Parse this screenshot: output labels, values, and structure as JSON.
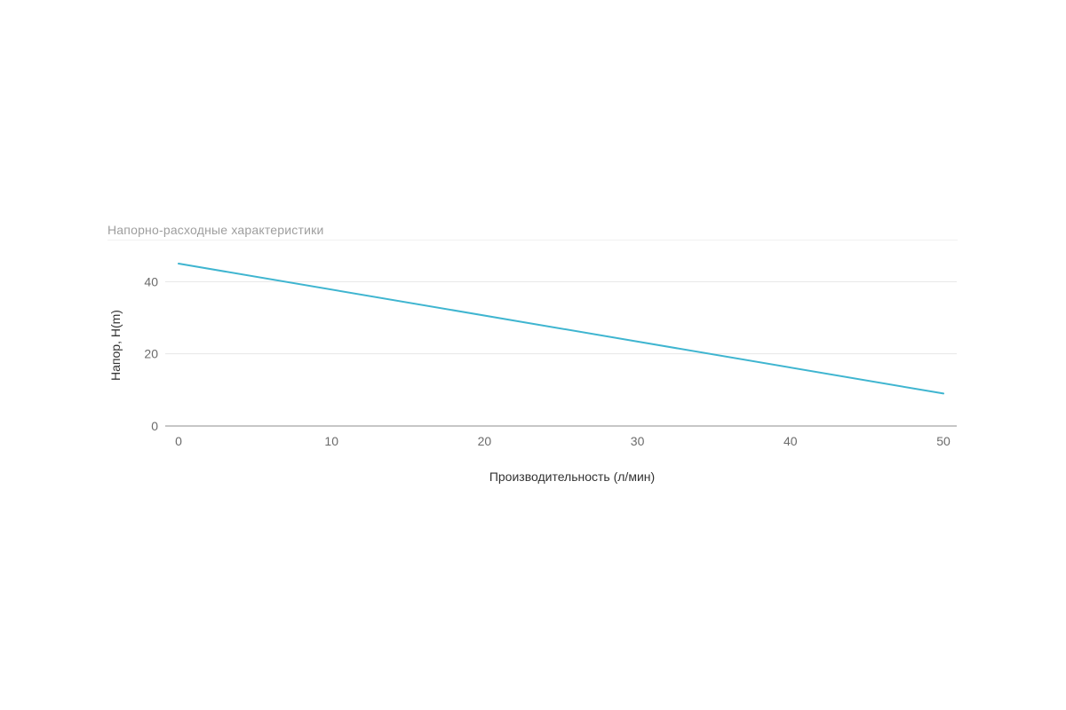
{
  "chart_data": {
    "type": "line",
    "title": "Напорно-расходные характеристики",
    "xlabel": "Производительность (л/мин)",
    "ylabel": "Напор, H(m)",
    "x_ticks": [
      "0",
      "10",
      "20",
      "30",
      "40",
      "50"
    ],
    "y_ticks": [
      "0",
      "20",
      "40"
    ],
    "xlim": [
      0,
      50
    ],
    "ylim": [
      0,
      45
    ],
    "grid": "horizontal",
    "legend": "none",
    "series": [
      {
        "color": "#3fb5d0",
        "x": [
          0,
          50
        ],
        "y": [
          45,
          9
        ]
      }
    ],
    "colors": {
      "line": "#3fb5d0",
      "grid": "#e6e6e6",
      "axis": "#8c8c8c"
    }
  }
}
